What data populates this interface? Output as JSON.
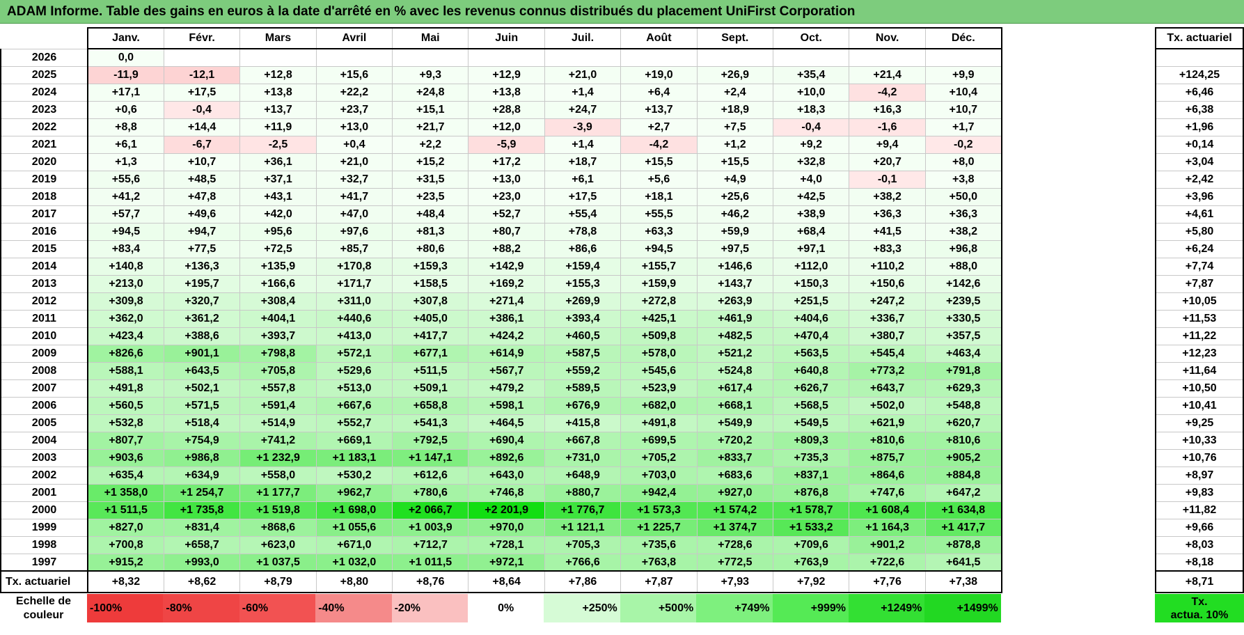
{
  "title": "ADAM Informe. Table des gains en euros à la date d'arrêté en % avec les revenus connus distribués du placement UniFirst Corporation",
  "months": [
    "Janv.",
    "Févr.",
    "Mars",
    "Avril",
    "Mai",
    "Juin",
    "Juil.",
    "Août",
    "Sept.",
    "Oct.",
    "Nov.",
    "Déc."
  ],
  "side_header": "Tx. actuariel",
  "rows": [
    {
      "year": "2026",
      "values": [
        "0,0"
      ],
      "tx": ""
    },
    {
      "year": "2025",
      "values": [
        "-11,9",
        "-12,1",
        "+12,8",
        "+15,6",
        "+9,3",
        "+12,9",
        "+21,0",
        "+19,0",
        "+26,9",
        "+35,4",
        "+21,4",
        "+9,9"
      ],
      "tx": "+124,25"
    },
    {
      "year": "2024",
      "values": [
        "+17,1",
        "+17,5",
        "+13,8",
        "+22,2",
        "+24,8",
        "+13,8",
        "+1,4",
        "+6,4",
        "+2,4",
        "+10,0",
        "-4,2",
        "+10,4"
      ],
      "tx": "+6,46"
    },
    {
      "year": "2023",
      "values": [
        "+0,6",
        "-0,4",
        "+13,7",
        "+23,7",
        "+15,1",
        "+28,8",
        "+24,7",
        "+13,7",
        "+18,9",
        "+18,3",
        "+16,3",
        "+10,7"
      ],
      "tx": "+6,38"
    },
    {
      "year": "2022",
      "values": [
        "+8,8",
        "+14,4",
        "+11,9",
        "+13,0",
        "+21,7",
        "+12,0",
        "-3,9",
        "+2,7",
        "+7,5",
        "-0,4",
        "-1,6",
        "+1,7"
      ],
      "tx": "+1,96"
    },
    {
      "year": "2021",
      "values": [
        "+6,1",
        "-6,7",
        "-2,5",
        "+0,4",
        "+2,2",
        "-5,9",
        "+1,4",
        "-4,2",
        "+1,2",
        "+9,2",
        "+9,4",
        "-0,2"
      ],
      "tx": "+0,14"
    },
    {
      "year": "2020",
      "values": [
        "+1,3",
        "+10,7",
        "+36,1",
        "+21,0",
        "+15,2",
        "+17,2",
        "+18,7",
        "+15,5",
        "+15,5",
        "+32,8",
        "+20,7",
        "+8,0"
      ],
      "tx": "+3,04"
    },
    {
      "year": "2019",
      "values": [
        "+55,6",
        "+48,5",
        "+37,1",
        "+32,7",
        "+31,5",
        "+13,0",
        "+6,1",
        "+5,6",
        "+4,9",
        "+4,0",
        "-0,1",
        "+3,8"
      ],
      "tx": "+2,42"
    },
    {
      "year": "2018",
      "values": [
        "+41,2",
        "+47,8",
        "+43,1",
        "+41,7",
        "+23,5",
        "+23,0",
        "+17,5",
        "+18,1",
        "+25,6",
        "+42,5",
        "+38,2",
        "+50,0"
      ],
      "tx": "+3,96"
    },
    {
      "year": "2017",
      "values": [
        "+57,7",
        "+49,6",
        "+42,0",
        "+47,0",
        "+48,4",
        "+52,7",
        "+55,4",
        "+55,5",
        "+46,2",
        "+38,9",
        "+36,3",
        "+36,3"
      ],
      "tx": "+4,61"
    },
    {
      "year": "2016",
      "values": [
        "+94,5",
        "+94,7",
        "+95,6",
        "+97,6",
        "+81,3",
        "+80,7",
        "+78,8",
        "+63,3",
        "+59,9",
        "+68,4",
        "+41,5",
        "+38,2"
      ],
      "tx": "+5,80"
    },
    {
      "year": "2015",
      "values": [
        "+83,4",
        "+77,5",
        "+72,5",
        "+85,7",
        "+80,6",
        "+88,2",
        "+86,6",
        "+94,5",
        "+97,5",
        "+97,1",
        "+83,3",
        "+96,8"
      ],
      "tx": "+6,24"
    },
    {
      "year": "2014",
      "values": [
        "+140,8",
        "+136,3",
        "+135,9",
        "+170,8",
        "+159,3",
        "+142,9",
        "+159,4",
        "+155,7",
        "+146,6",
        "+112,0",
        "+110,2",
        "+88,0"
      ],
      "tx": "+7,74"
    },
    {
      "year": "2013",
      "values": [
        "+213,0",
        "+195,7",
        "+166,6",
        "+171,7",
        "+158,5",
        "+169,2",
        "+155,3",
        "+159,9",
        "+143,7",
        "+150,3",
        "+150,6",
        "+142,6"
      ],
      "tx": "+7,87"
    },
    {
      "year": "2012",
      "values": [
        "+309,8",
        "+320,7",
        "+308,4",
        "+311,0",
        "+307,8",
        "+271,4",
        "+269,9",
        "+272,8",
        "+263,9",
        "+251,5",
        "+247,2",
        "+239,5"
      ],
      "tx": "+10,05"
    },
    {
      "year": "2011",
      "values": [
        "+362,0",
        "+361,2",
        "+404,1",
        "+440,6",
        "+405,0",
        "+386,1",
        "+393,4",
        "+425,1",
        "+461,9",
        "+404,6",
        "+336,7",
        "+330,5"
      ],
      "tx": "+11,53"
    },
    {
      "year": "2010",
      "values": [
        "+423,4",
        "+388,6",
        "+393,7",
        "+413,0",
        "+417,7",
        "+424,2",
        "+460,5",
        "+509,8",
        "+482,5",
        "+470,4",
        "+380,7",
        "+357,5"
      ],
      "tx": "+11,22"
    },
    {
      "year": "2009",
      "values": [
        "+826,6",
        "+901,1",
        "+798,8",
        "+572,1",
        "+677,1",
        "+614,9",
        "+587,5",
        "+578,0",
        "+521,2",
        "+563,5",
        "+545,4",
        "+463,4"
      ],
      "tx": "+12,23"
    },
    {
      "year": "2008",
      "values": [
        "+588,1",
        "+643,5",
        "+705,8",
        "+529,6",
        "+511,5",
        "+567,7",
        "+559,2",
        "+545,6",
        "+524,8",
        "+640,8",
        "+773,2",
        "+791,8"
      ],
      "tx": "+11,64"
    },
    {
      "year": "2007",
      "values": [
        "+491,8",
        "+502,1",
        "+557,8",
        "+513,0",
        "+509,1",
        "+479,2",
        "+589,5",
        "+523,9",
        "+617,4",
        "+626,7",
        "+643,7",
        "+629,3"
      ],
      "tx": "+10,50"
    },
    {
      "year": "2006",
      "values": [
        "+560,5",
        "+571,5",
        "+591,4",
        "+667,6",
        "+658,8",
        "+598,1",
        "+676,9",
        "+682,0",
        "+668,1",
        "+568,5",
        "+502,0",
        "+548,8"
      ],
      "tx": "+10,41"
    },
    {
      "year": "2005",
      "values": [
        "+532,8",
        "+518,4",
        "+514,9",
        "+552,7",
        "+541,3",
        "+464,5",
        "+415,8",
        "+491,8",
        "+549,9",
        "+549,5",
        "+621,9",
        "+620,7"
      ],
      "tx": "+9,25"
    },
    {
      "year": "2004",
      "values": [
        "+807,7",
        "+754,9",
        "+741,2",
        "+669,1",
        "+792,5",
        "+690,4",
        "+667,8",
        "+699,5",
        "+720,2",
        "+809,3",
        "+810,6",
        "+810,6"
      ],
      "tx": "+10,33"
    },
    {
      "year": "2003",
      "values": [
        "+903,6",
        "+986,8",
        "+1 232,9",
        "+1 183,1",
        "+1 147,1",
        "+892,6",
        "+731,0",
        "+705,2",
        "+833,7",
        "+735,3",
        "+875,7",
        "+905,2"
      ],
      "tx": "+10,76"
    },
    {
      "year": "2002",
      "values": [
        "+635,4",
        "+634,9",
        "+558,0",
        "+530,2",
        "+612,6",
        "+643,0",
        "+648,9",
        "+703,0",
        "+683,6",
        "+837,1",
        "+864,6",
        "+884,8"
      ],
      "tx": "+8,97"
    },
    {
      "year": "2001",
      "values": [
        "+1 358,0",
        "+1 254,7",
        "+1 177,7",
        "+962,7",
        "+780,6",
        "+746,8",
        "+880,7",
        "+942,4",
        "+927,0",
        "+876,8",
        "+747,6",
        "+647,2"
      ],
      "tx": "+9,83"
    },
    {
      "year": "2000",
      "values": [
        "+1 511,5",
        "+1 735,8",
        "+1 519,8",
        "+1 698,0",
        "+2 066,7",
        "+2 201,9",
        "+1 776,7",
        "+1 573,3",
        "+1 574,2",
        "+1 578,7",
        "+1 608,4",
        "+1 634,8"
      ],
      "tx": "+11,82"
    },
    {
      "year": "1999",
      "values": [
        "+827,0",
        "+831,4",
        "+868,6",
        "+1 055,6",
        "+1 003,9",
        "+970,0",
        "+1 121,1",
        "+1 225,7",
        "+1 374,7",
        "+1 533,2",
        "+1 164,3",
        "+1 417,7"
      ],
      "tx": "+9,66"
    },
    {
      "year": "1998",
      "values": [
        "+700,8",
        "+658,7",
        "+623,0",
        "+671,0",
        "+712,7",
        "+728,1",
        "+705,3",
        "+735,6",
        "+728,6",
        "+709,6",
        "+901,2",
        "+878,8"
      ],
      "tx": "+8,03"
    },
    {
      "year": "1997",
      "values": [
        "+915,2",
        "+993,0",
        "+1 037,5",
        "+1 032,0",
        "+1 011,5",
        "+972,1",
        "+766,6",
        "+763,8",
        "+772,5",
        "+763,9",
        "+722,6",
        "+641,5"
      ],
      "tx": "+8,18"
    }
  ],
  "footer": {
    "label": "Tx. actuariel",
    "values": [
      "+8,32",
      "+8,62",
      "+8,79",
      "+8,80",
      "+8,76",
      "+8,64",
      "+7,86",
      "+7,87",
      "+7,93",
      "+7,92",
      "+7,76",
      "+7,38"
    ],
    "tx": "+8,71"
  },
  "legend": {
    "label_line1": "Echelle de",
    "label_line2": "couleur",
    "items": [
      {
        "text": "-100%",
        "color": "#ee3b3b",
        "align": "left"
      },
      {
        "text": "-80%",
        "color": "#ef4545",
        "align": "left"
      },
      {
        "text": "-60%",
        "color": "#f25252",
        "align": "left"
      },
      {
        "text": "-40%",
        "color": "#f58a8a",
        "align": "left"
      },
      {
        "text": "-20%",
        "color": "#fac0c0",
        "align": "left"
      },
      {
        "text": "0%",
        "color": "#ffffff",
        "align": "center"
      },
      {
        "text": "+250%",
        "color": "#d6fbd6",
        "align": "right"
      },
      {
        "text": "+500%",
        "color": "#a8f5a8",
        "align": "right"
      },
      {
        "text": "+749%",
        "color": "#7ef07e",
        "align": "right"
      },
      {
        "text": "+999%",
        "color": "#55ea55",
        "align": "right"
      },
      {
        "text": "+1249%",
        "color": "#33e033",
        "align": "right"
      },
      {
        "text": "+1499%",
        "color": "#22d822",
        "align": "right"
      }
    ],
    "side_line1": "Tx.",
    "side_line2": "actua. 10%"
  }
}
